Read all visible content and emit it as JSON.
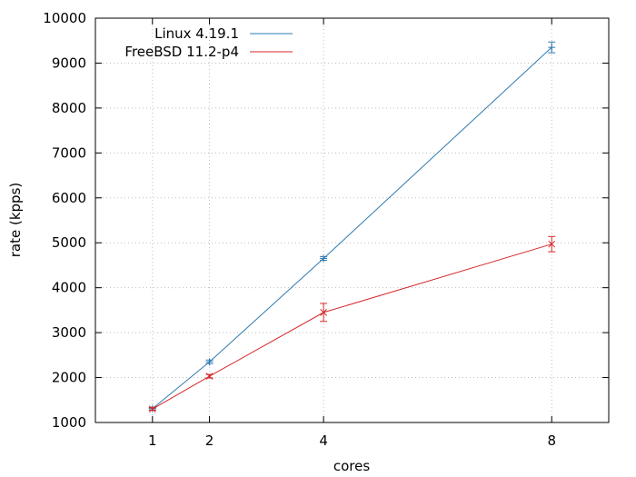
{
  "chart_data": {
    "type": "line",
    "title": "",
    "xlabel": "cores",
    "ylabel": "rate (kpps)",
    "xlim": [
      0,
      9
    ],
    "ylim": [
      1000,
      10000
    ],
    "xticks": [
      1,
      2,
      4,
      8
    ],
    "yticks": [
      1000,
      2000,
      3000,
      4000,
      5000,
      6000,
      7000,
      8000,
      9000,
      10000
    ],
    "grid": true,
    "legend": "top-left",
    "series": [
      {
        "name": "Linux 4.19.1",
        "color": "#2e7bb0",
        "marker": "plus",
        "x": [
          1,
          2,
          4,
          8
        ],
        "y": [
          1310,
          2350,
          4650,
          9350
        ],
        "err": [
          30,
          40,
          40,
          120
        ]
      },
      {
        "name": "FreeBSD 11.2-p4",
        "color": "#d62728",
        "marker": "cross",
        "x": [
          1,
          2,
          4,
          8
        ],
        "y": [
          1300,
          2030,
          3450,
          4970
        ],
        "err": [
          30,
          40,
          200,
          170
        ]
      }
    ]
  }
}
